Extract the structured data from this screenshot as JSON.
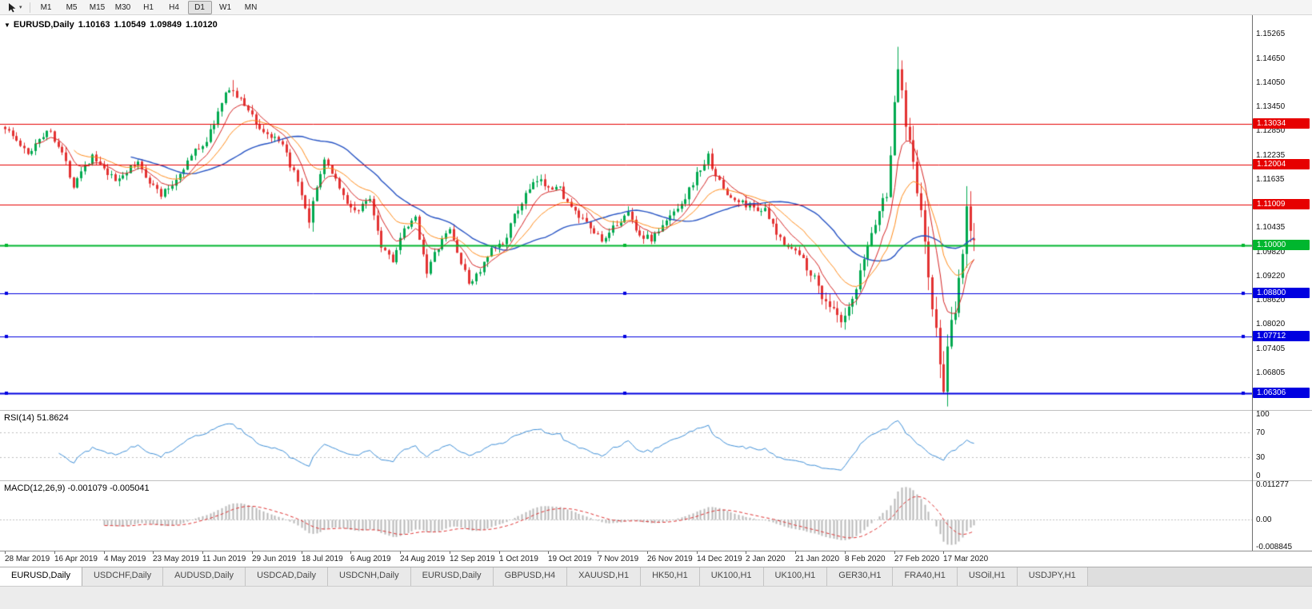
{
  "toolbar": {
    "cursor_tool": "pointer-tool",
    "timeframes": [
      "M1",
      "M5",
      "M15",
      "M30",
      "H1",
      "H4",
      "D1",
      "W1",
      "MN"
    ],
    "active_timeframe": "D1"
  },
  "chart": {
    "symbol": "EURUSD,Daily",
    "ohlc": {
      "open": "1.10163",
      "high": "1.10549",
      "low": "1.09849",
      "close": "1.10120"
    }
  },
  "price_axis_labels": [
    "1.15265",
    "1.14650",
    "1.14050",
    "1.13450",
    "1.12850",
    "1.12235",
    "1.11635",
    "1.10435",
    "1.09820",
    "1.09220",
    "1.08620",
    "1.08020",
    "1.07405",
    "1.06805"
  ],
  "levels": [
    {
      "type": "horizontal_line",
      "price": 1.13034,
      "label": "1.13034",
      "color": "#e60000",
      "width": 1,
      "markers": false
    },
    {
      "type": "horizontal_line",
      "price": 1.12004,
      "label": "1.12004",
      "color": "#e60000",
      "width": 1,
      "markers": false
    },
    {
      "type": "horizontal_line",
      "price": 1.11009,
      "label": "1.11009",
      "color": "#e60000",
      "width": 1,
      "markers": false
    },
    {
      "type": "horizontal_line",
      "price": 1.1,
      "label": "1.10000",
      "color": "#00b62e",
      "width": 2,
      "markers": true
    },
    {
      "type": "horizontal_line",
      "price": 1.088,
      "label": "1.08800",
      "color": "#0000e0",
      "width": 1,
      "markers": true
    },
    {
      "type": "horizontal_line",
      "price": 1.07712,
      "label": "1.07712",
      "color": "#0000e0",
      "width": 1,
      "markers": true
    },
    {
      "type": "horizontal_line",
      "price": 1.06306,
      "label": "1.06306",
      "color": "#0000e0",
      "width": 2,
      "markers": true
    }
  ],
  "rsi": {
    "label": "RSI(14) 51.8624",
    "period": 14,
    "current": 51.8624,
    "axis_labels": [
      "100",
      "70",
      "30",
      "0"
    ],
    "axis_values": [
      100,
      70,
      30,
      0
    ],
    "guide_levels": [
      70,
      30
    ],
    "line_color": "#3e8fd8",
    "range": [
      0,
      100
    ]
  },
  "macd": {
    "label": "MACD(12,26,9) -0.001079 -0.005041",
    "params": [
      12,
      26,
      9
    ],
    "current_main": -0.001079,
    "current_signal": -0.005041,
    "axis_labels": [
      "0.011277",
      "0.00",
      "-0.008845"
    ],
    "axis_values": [
      0.011277,
      0,
      -0.008845
    ],
    "range": [
      -0.008845,
      0.011277
    ],
    "histogram_color": "#b9b9b9",
    "signal_color": "#e03131"
  },
  "time_axis_labels": [
    "28 Mar 2019",
    "16 Apr 2019",
    "4 May 2019",
    "23 May 2019",
    "11 Jun 2019",
    "29 Jun 2019",
    "18 Jul 2019",
    "6 Aug 2019",
    "24 Aug 2019",
    "12 Sep 2019",
    "1 Oct 2019",
    "19 Oct 2019",
    "7 Nov 2019",
    "26 Nov 2019",
    "14 Dec 2019",
    "2 Jan 2020",
    "21 Jan 2020",
    "8 Feb 2020",
    "27 Feb 2020",
    "17 Mar 2020"
  ],
  "tabs": [
    {
      "label": "EURUSD,Daily",
      "active": true
    },
    {
      "label": "USDCHF,Daily",
      "active": false
    },
    {
      "label": "AUDUSD,Daily",
      "active": false
    },
    {
      "label": "USDCAD,Daily",
      "active": false
    },
    {
      "label": "USDCNH,Daily",
      "active": false
    },
    {
      "label": "EURUSD,Daily",
      "active": false
    },
    {
      "label": "GBPUSD,H4",
      "active": false
    },
    {
      "label": "XAUUSD,H1",
      "active": false
    },
    {
      "label": "HK50,H1",
      "active": false
    },
    {
      "label": "UK100,H1",
      "active": false
    },
    {
      "label": "UK100,H1",
      "active": false
    },
    {
      "label": "GER30,H1",
      "active": false
    },
    {
      "label": "FRA40,H1",
      "active": false
    },
    {
      "label": "USOil,H1",
      "active": false
    },
    {
      "label": "USDJPY,H1",
      "active": false
    }
  ],
  "colors": {
    "up_candle": "#00a94f",
    "down_candle": "#e33232",
    "ma_fast": "#d62424",
    "ma_mid": "#ff8c1a",
    "ma_slow": "#2653c4",
    "background": "#ffffff"
  },
  "chart_data": {
    "type": "candlestick",
    "symbol": "EURUSD",
    "timeframe": "Daily",
    "bars": 256,
    "ylim": [
      1.06,
      1.156
    ],
    "current_bar": {
      "open": 1.10163,
      "high": 1.10549,
      "low": 1.09849,
      "close": 1.1012
    },
    "price_path_anchors": [
      [
        0,
        1.1295
      ],
      [
        3,
        1.126
      ],
      [
        6,
        1.1225
      ],
      [
        9,
        1.127
      ],
      [
        12,
        1.1285
      ],
      [
        15,
        1.123
      ],
      [
        18,
        1.115
      ],
      [
        20,
        1.119
      ],
      [
        23,
        1.122
      ],
      [
        26,
        1.1185
      ],
      [
        29,
        1.116
      ],
      [
        32,
        1.1185
      ],
      [
        35,
        1.1205
      ],
      [
        38,
        1.116
      ],
      [
        41,
        1.1125
      ],
      [
        44,
        1.115
      ],
      [
        47,
        1.1195
      ],
      [
        50,
        1.1235
      ],
      [
        53,
        1.126
      ],
      [
        56,
        1.133
      ],
      [
        59,
        1.1395
      ],
      [
        61,
        1.137
      ],
      [
        64,
        1.134
      ],
      [
        67,
        1.129
      ],
      [
        70,
        1.127
      ],
      [
        73,
        1.1245
      ],
      [
        76,
        1.118
      ],
      [
        78,
        1.112
      ],
      [
        80,
        1.1045
      ],
      [
        82,
        1.115
      ],
      [
        84,
        1.1205
      ],
      [
        86,
        1.1185
      ],
      [
        88,
        1.1145
      ],
      [
        90,
        1.11
      ],
      [
        93,
        1.1085
      ],
      [
        96,
        1.112
      ],
      [
        99,
        1.1
      ],
      [
        102,
        1.0965
      ],
      [
        105,
        1.1035
      ],
      [
        108,
        1.1065
      ],
      [
        111,
        1.0935
      ],
      [
        114,
        1.0995
      ],
      [
        117,
        1.104
      ],
      [
        120,
        1.0955
      ],
      [
        122,
        1.0905
      ],
      [
        125,
        1.0935
      ],
      [
        128,
        1.0985
      ],
      [
        131,
        1.1005
      ],
      [
        134,
        1.107
      ],
      [
        137,
        1.1125
      ],
      [
        140,
        1.116
      ],
      [
        143,
        1.115
      ],
      [
        146,
        1.114
      ],
      [
        149,
        1.109
      ],
      [
        152,
        1.106
      ],
      [
        155,
        1.103
      ],
      [
        158,
        1.101
      ],
      [
        161,
        1.1055
      ],
      [
        164,
        1.108
      ],
      [
        167,
        1.1025
      ],
      [
        170,
        1.1015
      ],
      [
        173,
        1.1045
      ],
      [
        176,
        1.1085
      ],
      [
        179,
        1.112
      ],
      [
        182,
        1.1175
      ],
      [
        185,
        1.122
      ],
      [
        188,
        1.1155
      ],
      [
        191,
        1.1115
      ],
      [
        194,
        1.1105
      ],
      [
        197,
        1.1095
      ],
      [
        200,
        1.1085
      ],
      [
        203,
        1.1025
      ],
      [
        206,
        1.1
      ],
      [
        209,
        1.0975
      ],
      [
        212,
        1.0935
      ],
      [
        215,
        1.0875
      ],
      [
        218,
        1.0835
      ],
      [
        220,
        1.08
      ],
      [
        222,
        1.0835
      ],
      [
        224,
        1.0885
      ],
      [
        226,
        1.0965
      ],
      [
        228,
        1.103
      ],
      [
        230,
        1.1085
      ],
      [
        232,
        1.1135
      ],
      [
        234,
        1.134
      ],
      [
        235,
        1.1445
      ],
      [
        236,
        1.1385
      ],
      [
        237,
        1.131
      ],
      [
        238,
        1.1275
      ],
      [
        239,
        1.1225
      ],
      [
        240,
        1.114
      ],
      [
        241,
        1.1075
      ],
      [
        242,
        1.1
      ],
      [
        243,
        1.092
      ],
      [
        244,
        1.085
      ],
      [
        245,
        1.0775
      ],
      [
        246,
        1.07
      ],
      [
        247,
        1.065
      ],
      [
        248,
        1.0725
      ],
      [
        249,
        1.079
      ],
      [
        250,
        1.0835
      ],
      [
        251,
        1.0905
      ],
      [
        252,
        1.0985
      ],
      [
        253,
        1.1095
      ],
      [
        254,
        1.103
      ],
      [
        255,
        1.1016
      ]
    ],
    "forced_points": [
      {
        "bar": 60,
        "high": 1.1412
      },
      {
        "bar": 235,
        "high": 1.1495
      },
      {
        "bar": 247,
        "low": 1.0636
      },
      {
        "bar": 253,
        "high": 1.1147
      }
    ],
    "moving_averages": [
      {
        "name": "fast",
        "method": "EMA",
        "period": 8,
        "color": "#d62424"
      },
      {
        "name": "mid",
        "method": "EMA",
        "period": 18,
        "color": "#ff8c1a"
      },
      {
        "name": "slow",
        "method": "SMA",
        "period": 34,
        "color": "#2653c4"
      }
    ]
  }
}
